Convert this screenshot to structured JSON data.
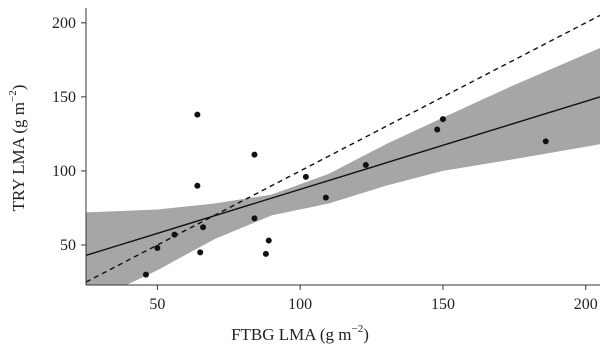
{
  "chart_data": {
    "type": "scatter",
    "xlabel": "FTBG LMA (g m",
    "xlabel_exp": "−2",
    "xlabel_end": ")",
    "ylabel": "TRY LMA (g m",
    "ylabel_exp": "−2",
    "ylabel_end": ")",
    "xlim": [
      25,
      205
    ],
    "ylim": [
      23,
      210
    ],
    "xticks": [
      50,
      100,
      150,
      200
    ],
    "yticks": [
      50,
      100,
      150,
      200
    ],
    "grid": false,
    "points": [
      {
        "x": 46,
        "y": 30
      },
      {
        "x": 50,
        "y": 48
      },
      {
        "x": 56,
        "y": 57
      },
      {
        "x": 64,
        "y": 138
      },
      {
        "x": 64,
        "y": 90
      },
      {
        "x": 65,
        "y": 45
      },
      {
        "x": 66,
        "y": 62
      },
      {
        "x": 84,
        "y": 111
      },
      {
        "x": 84,
        "y": 68
      },
      {
        "x": 88,
        "y": 44
      },
      {
        "x": 89,
        "y": 53
      },
      {
        "x": 102,
        "y": 96
      },
      {
        "x": 109,
        "y": 82
      },
      {
        "x": 123,
        "y": 104
      },
      {
        "x": 148,
        "y": 128
      },
      {
        "x": 150,
        "y": 135
      },
      {
        "x": 186,
        "y": 120
      }
    ],
    "fit_line": [
      {
        "x": 25,
        "y": 43
      },
      {
        "x": 205,
        "y": 150
      }
    ],
    "reference_line_1to1": [
      {
        "x": 25,
        "y": 25
      },
      {
        "x": 205,
        "y": 205
      }
    ],
    "confidence_band": {
      "upper": [
        {
          "x": 25,
          "y": 72
        },
        {
          "x": 50,
          "y": 74
        },
        {
          "x": 70,
          "y": 78
        },
        {
          "x": 90,
          "y": 84
        },
        {
          "x": 110,
          "y": 98
        },
        {
          "x": 130,
          "y": 118
        },
        {
          "x": 150,
          "y": 136
        },
        {
          "x": 175,
          "y": 158
        },
        {
          "x": 205,
          "y": 183
        }
      ],
      "lower": [
        {
          "x": 205,
          "y": 118
        },
        {
          "x": 175,
          "y": 108
        },
        {
          "x": 150,
          "y": 100
        },
        {
          "x": 130,
          "y": 90
        },
        {
          "x": 110,
          "y": 78
        },
        {
          "x": 90,
          "y": 70
        },
        {
          "x": 70,
          "y": 54
        },
        {
          "x": 50,
          "y": 33
        },
        {
          "x": 25,
          "y": 10
        }
      ]
    }
  }
}
